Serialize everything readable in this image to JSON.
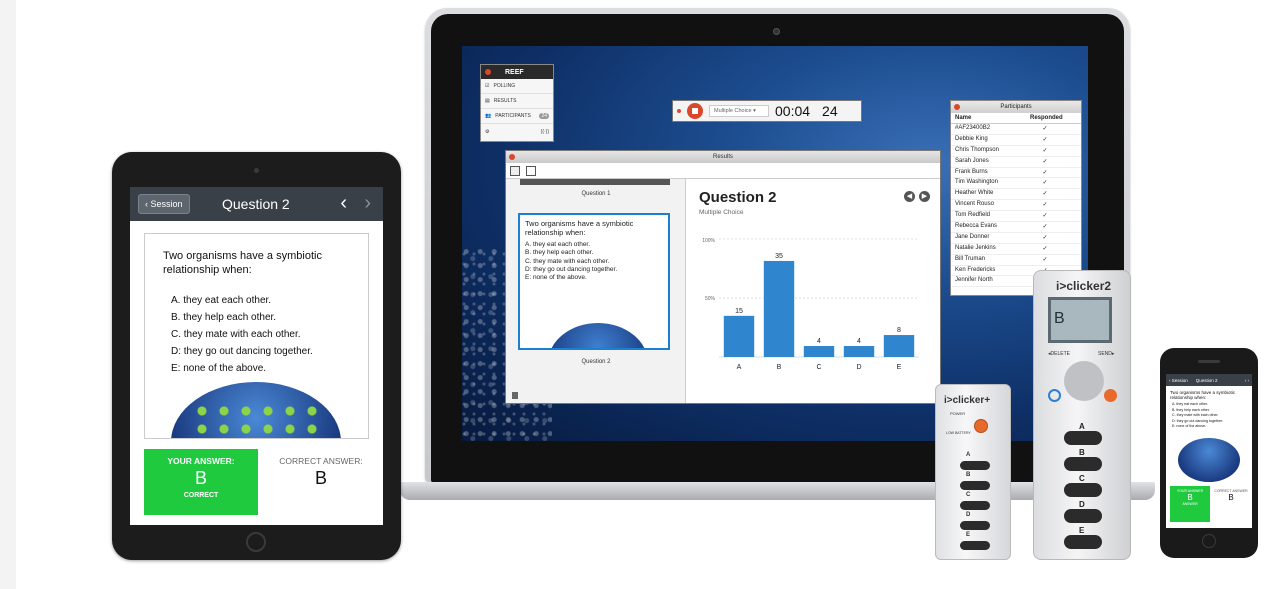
{
  "reef": {
    "brand": "REEF",
    "items": [
      {
        "label": "POLLING",
        "icon": "polling-icon"
      },
      {
        "label": "RESULTS",
        "icon": "results-icon"
      },
      {
        "label": "PARTICIPANTS",
        "icon": "participants-icon",
        "badge": "24"
      }
    ]
  },
  "poll_bar": {
    "type": "Multiple Choice",
    "timer": "00:04",
    "count": "24"
  },
  "participants": {
    "title": "Participants",
    "col_name": "Name",
    "col_responded": "Responded",
    "rows": [
      {
        "name": "#AF23400B2",
        "check": "✓"
      },
      {
        "name": "Debbie King",
        "check": "✓"
      },
      {
        "name": "Chris Thompson",
        "check": "✓"
      },
      {
        "name": "Sarah Jones",
        "check": "✓"
      },
      {
        "name": "Frank Burns",
        "check": "✓"
      },
      {
        "name": "Tim Washington",
        "check": "✓"
      },
      {
        "name": "Heather White",
        "check": "✓"
      },
      {
        "name": "Vincent Rouso",
        "check": "✓"
      },
      {
        "name": "Tom Redfield",
        "check": "✓"
      },
      {
        "name": "Rebecca Evans",
        "check": "✓"
      },
      {
        "name": "Jane Donner",
        "check": "✓"
      },
      {
        "name": "Natalie Jenkins",
        "check": "✓"
      },
      {
        "name": "Bill Truman",
        "check": "✓"
      },
      {
        "name": "Ken Fredericks",
        "check": "✓"
      },
      {
        "name": "Jennifer North",
        "check": "✓"
      }
    ]
  },
  "results": {
    "window_title": "Results",
    "side_q1": "Question 1",
    "side_q2": "Question 2",
    "thumb_question": "Two organisms have a symbiotic relationship when:",
    "title": "Question 2",
    "subtitle": "Multiple Choice",
    "ytick_top": "100%",
    "ytick_mid": "50%"
  },
  "chart_data": {
    "type": "bar",
    "categories": [
      "A",
      "B",
      "C",
      "D",
      "E"
    ],
    "values": [
      15,
      35,
      4,
      4,
      8
    ],
    "ylim": [
      0,
      43
    ],
    "color": "#2f86cf"
  },
  "question": {
    "text": "Two organisms have a symbiotic relationship when:",
    "options": [
      "A. they eat each other.",
      "B. they help each other.",
      "C. they mate with each other.",
      "D: they go out dancing together.",
      "E: none of the above."
    ]
  },
  "tablet": {
    "back_label": "Session",
    "title": "Question 2",
    "prev_icon": "‹",
    "next_icon": "›",
    "your_answer_label": "YOUR ANSWER:",
    "your_answer": "B",
    "status": "CORRECT",
    "correct_answer_label": "CORRECT ANSWER:",
    "correct_answer": "B"
  },
  "phone": {
    "back_label": "Session",
    "title": "Question 2",
    "your_answer_label": "YOUR ANSWER",
    "your_answer": "B",
    "status": "ANSWER",
    "correct_answer_label": "CORRECT ANSWER",
    "correct_answer": "B"
  },
  "clicker_plus": {
    "logo": "i>clicker+",
    "power": "POWER",
    "low_battery": "LOW BATTERY",
    "keys": [
      "A",
      "B",
      "C",
      "D",
      "E"
    ]
  },
  "clicker2": {
    "logo": "i>clicker2",
    "lcd": "B",
    "delete": "◂DELETE",
    "send": "SEND▸",
    "keys": [
      "A",
      "B",
      "C",
      "D",
      "E"
    ]
  }
}
